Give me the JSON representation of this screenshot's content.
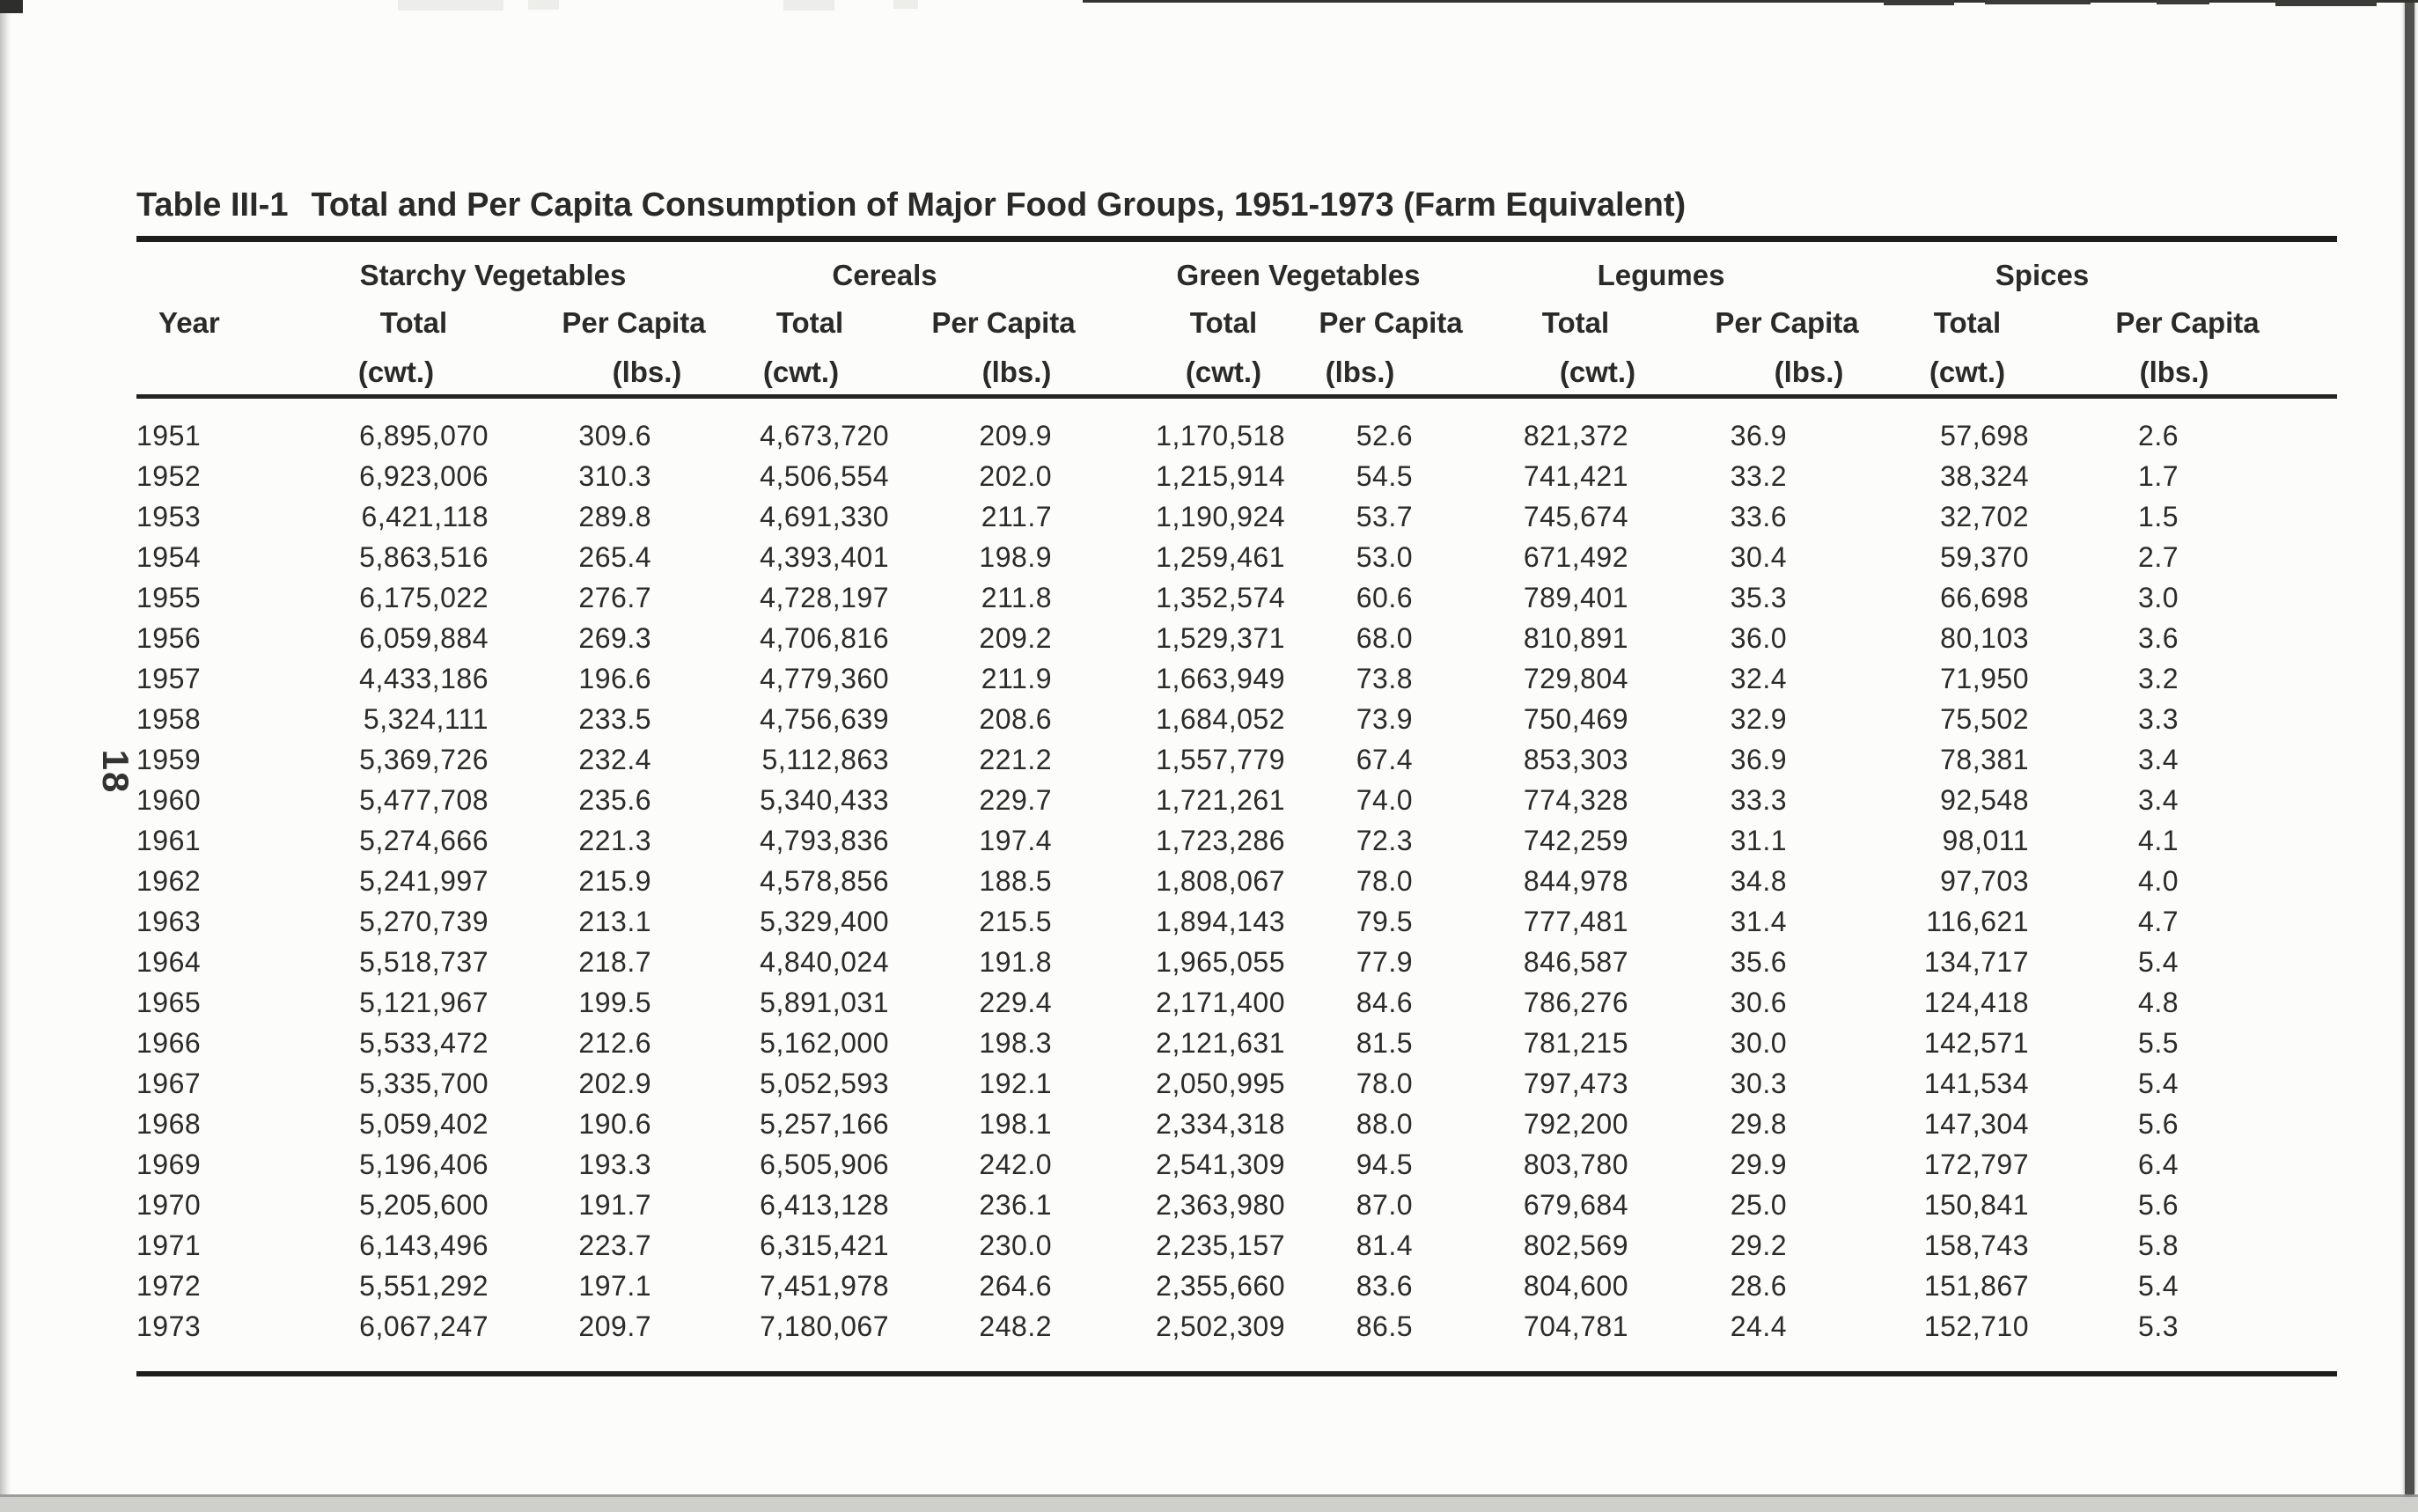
{
  "page": {
    "side_page_number": "18"
  },
  "colors": {
    "paper": "#fcfcfa",
    "ink": "#2a2a28",
    "rule": "#1e1e1c"
  },
  "table": {
    "title_prefix": "Table III-1",
    "title_text": "Total and Per Capita Consumption of Major Food Groups, 1951-1973 (Farm Equivalent)",
    "groups": [
      "Starchy Vegetables",
      "Cereals",
      "Green Vegetables",
      "Legumes",
      "Spices"
    ],
    "columns": {
      "year": "Year",
      "total": "Total",
      "total_unit": "(cwt.)",
      "per_capita": "Per Capita",
      "per_capita_unit": "(lbs.)"
    },
    "rows": [
      [
        "1951",
        "6,895,070",
        "309.6",
        "4,673,720",
        "209.9",
        "1,170,518",
        "52.6",
        "821,372",
        "36.9",
        "57,698",
        "2.6"
      ],
      [
        "1952",
        "6,923,006",
        "310.3",
        "4,506,554",
        "202.0",
        "1,215,914",
        "54.5",
        "741,421",
        "33.2",
        "38,324",
        "1.7"
      ],
      [
        "1953",
        "6,421,118",
        "289.8",
        "4,691,330",
        "211.7",
        "1,190,924",
        "53.7",
        "745,674",
        "33.6",
        "32,702",
        "1.5"
      ],
      [
        "1954",
        "5,863,516",
        "265.4",
        "4,393,401",
        "198.9",
        "1,259,461",
        "53.0",
        "671,492",
        "30.4",
        "59,370",
        "2.7"
      ],
      [
        "1955",
        "6,175,022",
        "276.7",
        "4,728,197",
        "211.8",
        "1,352,574",
        "60.6",
        "789,401",
        "35.3",
        "66,698",
        "3.0"
      ],
      [
        "1956",
        "6,059,884",
        "269.3",
        "4,706,816",
        "209.2",
        "1,529,371",
        "68.0",
        "810,891",
        "36.0",
        "80,103",
        "3.6"
      ],
      [
        "1957",
        "4,433,186",
        "196.6",
        "4,779,360",
        "211.9",
        "1,663,949",
        "73.8",
        "729,804",
        "32.4",
        "71,950",
        "3.2"
      ],
      [
        "1958",
        "5,324,111",
        "233.5",
        "4,756,639",
        "208.6",
        "1,684,052",
        "73.9",
        "750,469",
        "32.9",
        "75,502",
        "3.3"
      ],
      [
        "1959",
        "5,369,726",
        "232.4",
        "5,112,863",
        "221.2",
        "1,557,779",
        "67.4",
        "853,303",
        "36.9",
        "78,381",
        "3.4"
      ],
      [
        "1960",
        "5,477,708",
        "235.6",
        "5,340,433",
        "229.7",
        "1,721,261",
        "74.0",
        "774,328",
        "33.3",
        "92,548",
        "3.4"
      ],
      [
        "1961",
        "5,274,666",
        "221.3",
        "4,793,836",
        "197.4",
        "1,723,286",
        "72.3",
        "742,259",
        "31.1",
        "98,011",
        "4.1"
      ],
      [
        "1962",
        "5,241,997",
        "215.9",
        "4,578,856",
        "188.5",
        "1,808,067",
        "78.0",
        "844,978",
        "34.8",
        "97,703",
        "4.0"
      ],
      [
        "1963",
        "5,270,739",
        "213.1",
        "5,329,400",
        "215.5",
        "1,894,143",
        "79.5",
        "777,481",
        "31.4",
        "116,621",
        "4.7"
      ],
      [
        "1964",
        "5,518,737",
        "218.7",
        "4,840,024",
        "191.8",
        "1,965,055",
        "77.9",
        "846,587",
        "35.6",
        "134,717",
        "5.4"
      ],
      [
        "1965",
        "5,121,967",
        "199.5",
        "5,891,031",
        "229.4",
        "2,171,400",
        "84.6",
        "786,276",
        "30.6",
        "124,418",
        "4.8"
      ],
      [
        "1966",
        "5,533,472",
        "212.6",
        "5,162,000",
        "198.3",
        "2,121,631",
        "81.5",
        "781,215",
        "30.0",
        "142,571",
        "5.5"
      ],
      [
        "1967",
        "5,335,700",
        "202.9",
        "5,052,593",
        "192.1",
        "2,050,995",
        "78.0",
        "797,473",
        "30.3",
        "141,534",
        "5.4"
      ],
      [
        "1968",
        "5,059,402",
        "190.6",
        "5,257,166",
        "198.1",
        "2,334,318",
        "88.0",
        "792,200",
        "29.8",
        "147,304",
        "5.6"
      ],
      [
        "1969",
        "5,196,406",
        "193.3",
        "6,505,906",
        "242.0",
        "2,541,309",
        "94.5",
        "803,780",
        "29.9",
        "172,797",
        "6.4"
      ],
      [
        "1970",
        "5,205,600",
        "191.7",
        "6,413,128",
        "236.1",
        "2,363,980",
        "87.0",
        "679,684",
        "25.0",
        "150,841",
        "5.6"
      ],
      [
        "1971",
        "6,143,496",
        "223.7",
        "6,315,421",
        "230.0",
        "2,235,157",
        "81.4",
        "802,569",
        "29.2",
        "158,743",
        "5.8"
      ],
      [
        "1972",
        "5,551,292",
        "197.1",
        "7,451,978",
        "264.6",
        "2,355,660",
        "83.6",
        "804,600",
        "28.6",
        "151,867",
        "5.4"
      ],
      [
        "1973",
        "6,067,247",
        "209.7",
        "7,180,067",
        "248.2",
        "2,502,309",
        "86.5",
        "704,781",
        "24.4",
        "152,710",
        "5.3"
      ]
    ]
  }
}
